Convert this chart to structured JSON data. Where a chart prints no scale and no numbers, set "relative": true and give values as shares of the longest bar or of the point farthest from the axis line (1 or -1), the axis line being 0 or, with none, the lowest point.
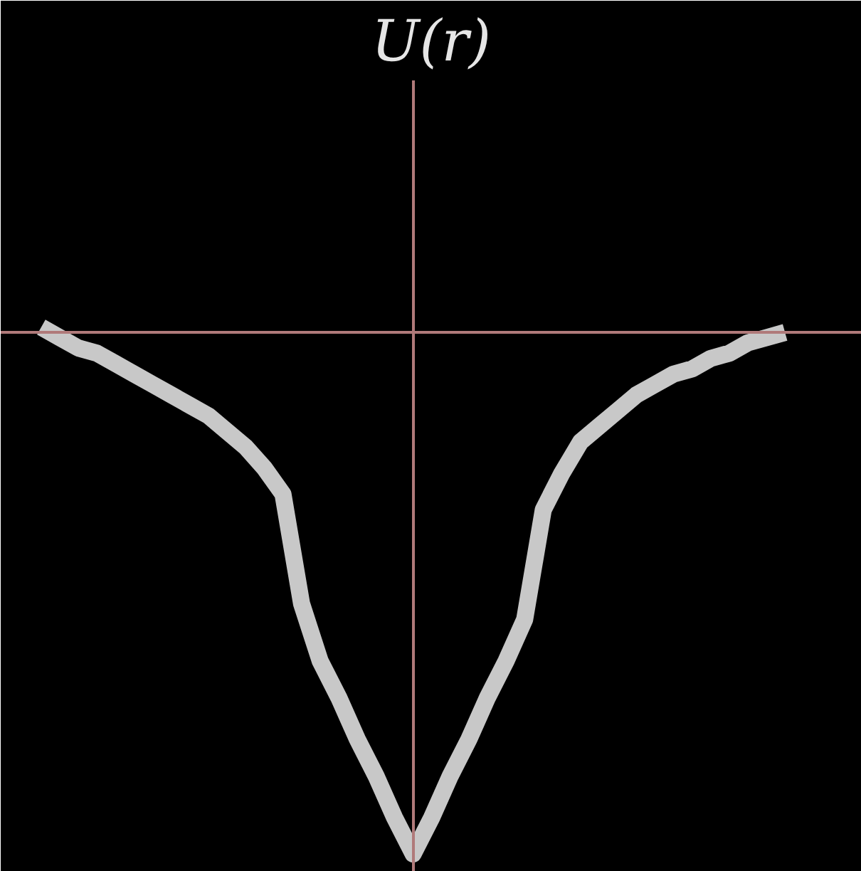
{
  "chart_data": {
    "type": "line",
    "title": "U(r)",
    "relative": true,
    "categories": [
      null,
      null,
      null,
      null,
      null,
      null,
      null,
      null,
      null,
      null,
      null,
      null,
      null,
      null,
      null,
      null,
      null,
      null,
      null,
      null,
      null,
      null,
      null,
      null,
      null,
      null,
      null,
      null,
      null,
      null,
      null,
      null,
      null,
      null,
      null,
      null,
      null,
      null,
      null,
      null,
      null
    ],
    "series": [
      {
        "color": "#c8c8c8",
        "values": [
          0.01,
          -0.01,
          -0.03,
          -0.04,
          -0.06,
          -0.08,
          -0.1,
          -0.12,
          -0.14,
          -0.16,
          -0.19,
          -0.22,
          -0.26,
          -0.31,
          -0.52,
          -0.63,
          -0.7,
          -0.78,
          -0.85,
          -0.93,
          -1,
          -0.93,
          -0.85,
          -0.78,
          -0.7,
          -0.63,
          -0.55,
          -0.34,
          -0.27,
          -0.21,
          -0.18,
          -0.15,
          -0.12,
          -0.1,
          -0.08,
          -0.07,
          -0.05,
          -0.04,
          -0.02,
          -0.01,
          0.0
        ]
      }
    ],
    "ref_lines": [
      {
        "axis": "y",
        "value": 0,
        "color": "#b07a7a"
      }
    ],
    "grid": false
  }
}
